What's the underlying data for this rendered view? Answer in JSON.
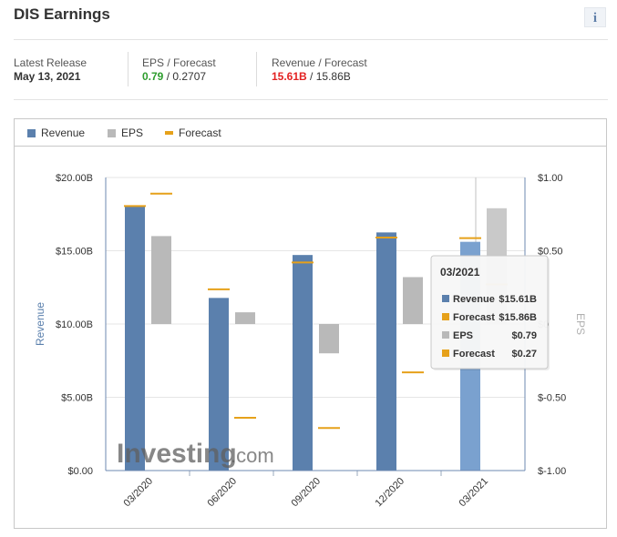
{
  "header": {
    "title": "DIS Earnings",
    "info_label": "i"
  },
  "summary": {
    "latest_release_label": "Latest Release",
    "latest_release_value": "May 13, 2021",
    "eps_label": "EPS / Forecast",
    "eps_actual": "0.79",
    "eps_separator": " / ",
    "eps_forecast": "0.2707",
    "revenue_label": "Revenue / Forecast",
    "revenue_actual": "15.61B",
    "revenue_separator": " / ",
    "revenue_forecast": "15.86B"
  },
  "colors": {
    "revenue": "#5b80ad",
    "eps": "#b9b9b9",
    "forecast": "#e6a11a",
    "eps_positive": "#2e9d2e",
    "revenue_miss": "#e32222"
  },
  "legend": [
    {
      "label": "Revenue",
      "color": "#5b80ad"
    },
    {
      "label": "EPS",
      "color": "#b9b9b9"
    },
    {
      "label": "Forecast",
      "color": "#e6a11a"
    }
  ],
  "tooltip": {
    "title": "03/2021",
    "rows": [
      {
        "label": "Revenue",
        "value": "$15.61B",
        "color": "#5b80ad"
      },
      {
        "label": "Forecast",
        "value": "$15.86B",
        "color": "#e6a11a"
      },
      {
        "label": "EPS",
        "value": "$0.79",
        "color": "#b9b9b9"
      },
      {
        "label": "Forecast",
        "value": "$0.27",
        "color": "#e6a11a"
      }
    ]
  },
  "watermark": {
    "brand": "Investing",
    "suffix": ".com"
  },
  "chart_data": {
    "type": "bar",
    "categories": [
      "03/2020",
      "06/2020",
      "09/2020",
      "12/2020",
      "03/2021"
    ],
    "series": [
      {
        "name": "Revenue",
        "axis": "left",
        "values": [
          18.01,
          11.78,
          14.71,
          16.25,
          15.61
        ]
      },
      {
        "name": "Forecast",
        "axis": "left",
        "values": [
          18.05,
          12.37,
          14.2,
          15.9,
          15.86
        ]
      },
      {
        "name": "EPS",
        "axis": "right",
        "values": [
          0.6,
          0.08,
          0.0,
          0.32,
          0.79
        ]
      },
      {
        "name": "Forecast",
        "axis": "right",
        "values": [
          0.89,
          -0.64,
          -0.71,
          -0.33,
          0.27
        ]
      }
    ],
    "eps_bar_base": [
      0,
      0,
      -0.2,
      0,
      0
    ],
    "ylabel": "Revenue",
    "y2label": "EPS",
    "ylim": [
      0,
      20
    ],
    "y2lim": [
      -1,
      1
    ],
    "yticks": [
      "$0.00",
      "$5.00B",
      "$10.00B",
      "$15.00B",
      "$20.00B"
    ],
    "y2ticks": [
      "$-1.00",
      "$-0.50",
      "$0",
      "$0.50",
      "$1.00"
    ],
    "grid": true,
    "legend_position": "top-left",
    "highlighted_category": "03/2021"
  }
}
